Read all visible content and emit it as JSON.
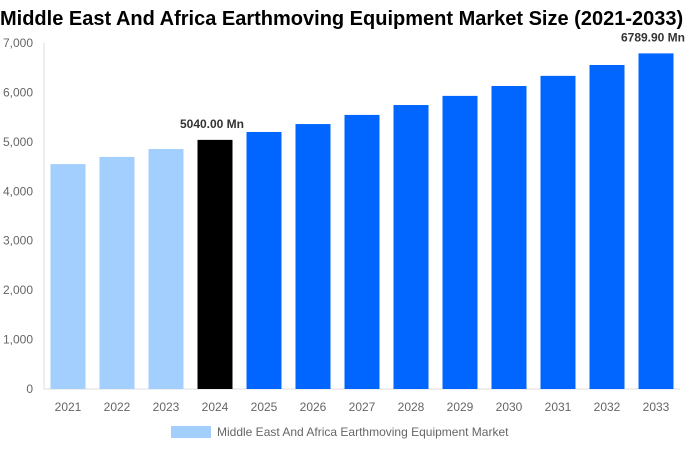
{
  "chart_data": {
    "type": "bar",
    "title": "Middle East And Africa Earthmoving Equipment Market Size (2021-2033)",
    "categories": [
      "2021",
      "2022",
      "2023",
      "2024",
      "2025",
      "2026",
      "2027",
      "2028",
      "2029",
      "2030",
      "2031",
      "2032",
      "2033"
    ],
    "series": [
      {
        "name": "Middle East And Africa Earthmoving Equipment Market",
        "values": [
          4550,
          4695,
          4855,
          5040,
          5200,
          5360,
          5545,
          5745,
          5930,
          6130,
          6335,
          6555,
          6789.9
        ]
      }
    ],
    "data_labels": {
      "3": "5040.00 Mn",
      "12": "6789.90 Mn"
    },
    "bar_colors": [
      "#a3cfff",
      "#a3cfff",
      "#a3cfff",
      "#000000",
      "#0066ff",
      "#0066ff",
      "#0066ff",
      "#0066ff",
      "#0066ff",
      "#0066ff",
      "#0066ff",
      "#0066ff",
      "#0066ff"
    ],
    "legend_color": "#a3cfff",
    "ylim": [
      0,
      7000
    ],
    "yticks": [
      "0",
      "1,000",
      "2,000",
      "3,000",
      "4,000",
      "5,000",
      "6,000",
      "7,000"
    ],
    "xlabel": "",
    "ylabel": "",
    "grid": false,
    "legend_position": "bottom"
  }
}
